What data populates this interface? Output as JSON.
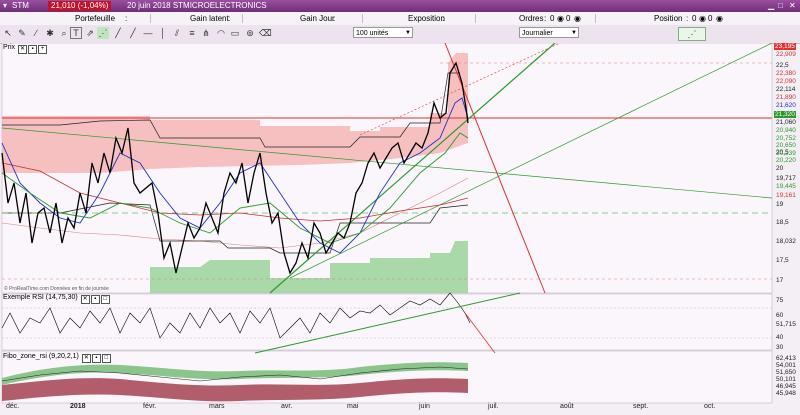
{
  "title": {
    "symbol": "STM",
    "price_change": "21,010 (-1,04%)",
    "date_name": "20 juin 2018 STMICROELECTRONICS"
  },
  "infobar": {
    "portefeuille": "Portefeuille",
    "gain_latent": "Gain latent",
    "gain_jour": "Gain Jour",
    "exposition": "Exposition",
    "ordres": "Ordres",
    "ordres_val1": "0",
    "ordres_val2": "0",
    "position": "Position",
    "position_val1": "0",
    "position_val2": "0"
  },
  "toolbar": {
    "units_select": "100 unités",
    "period_select": "Journalier"
  },
  "price_panel": {
    "label": "Prix",
    "credit": "© ProRealTime.com Données en fin de journée",
    "axis_labels": [
      "23,195",
      "22,909",
      "22,5",
      "22,380",
      "22,090",
      "22,114",
      "21,890",
      "21,620",
      "21,320",
      "21,060",
      "20,940",
      "20,752",
      "20,650",
      "20,5",
      "20,239",
      "20,220",
      "20",
      "19,717",
      "19,445",
      "19,161",
      "19",
      "18,5",
      "18,032",
      "17,5",
      "17"
    ]
  },
  "rsi_panel": {
    "label": "Exemple RSI (14,75,30)",
    "axis_labels": [
      "75",
      "60",
      "51,715",
      "40",
      "30"
    ]
  },
  "fibo_panel": {
    "label": "Fibo_zone_rsi (9,20,2,1)",
    "axis_labels": [
      "62,413",
      "54,001",
      "51,650",
      "50,101",
      "46,945",
      "45,948"
    ]
  },
  "months": [
    "déc.",
    "2018",
    "févr.",
    "mars",
    "avr.",
    "mai",
    "juin",
    "juil.",
    "août",
    "sept.",
    "oct."
  ],
  "colors": {
    "title_bg": "#7a3584",
    "price_badge": "#c0142a",
    "red_line": "#e03030",
    "green_line": "#2a9a2a",
    "blue_line": "#2030c8"
  }
}
